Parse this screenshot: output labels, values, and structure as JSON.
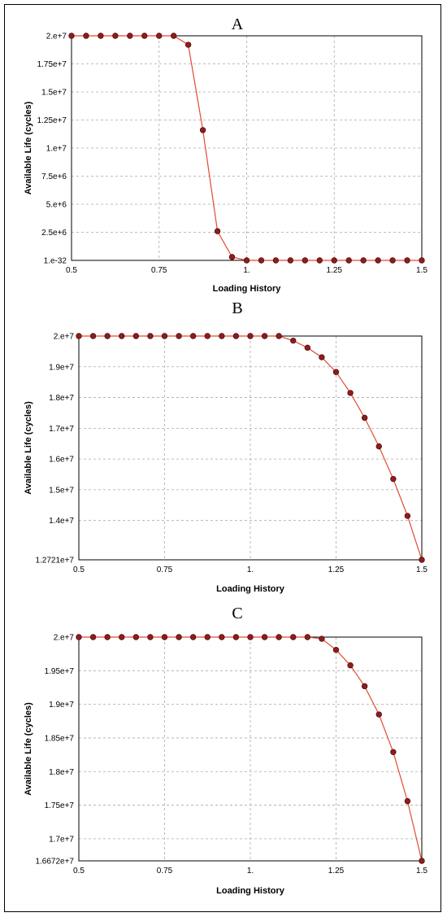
{
  "colors": {
    "line": "#e04b32",
    "point_fill": "#8b1e1e",
    "point_stroke": "#5a0c0c",
    "grid": "#aaaaaa",
    "frame": "#000000"
  },
  "chart_data": [
    {
      "type": "line",
      "title": "A",
      "xlabel": "Loading History",
      "ylabel": "Available Life (cycles)",
      "grid": true,
      "xlim": [
        0.5,
        1.5
      ],
      "ylim": [
        0,
        20000000
      ],
      "xticks": [
        0.5,
        0.75,
        1.0,
        1.25,
        1.5
      ],
      "xtick_labels": [
        "0.5",
        "0.75",
        "1.",
        "1.25",
        "1.5"
      ],
      "yticks": [
        0,
        2500000,
        5000000,
        7500000,
        10000000,
        12500000,
        15000000,
        17500000,
        20000000
      ],
      "ytick_labels": [
        "1.e-32",
        "2.5e+6",
        "5.e+6",
        "7.5e+6",
        "1.e+7",
        "1.25e+7",
        "1.5e+7",
        "1.75e+7",
        "2.e+7"
      ],
      "series": [
        {
          "x": [
            0.5,
            0.5417,
            0.5833,
            0.625,
            0.6667,
            0.7083,
            0.75,
            0.7917,
            0.8333,
            0.875,
            0.9167,
            0.9583,
            1.0,
            1.0417,
            1.0833,
            1.125,
            1.1667,
            1.2083,
            1.25,
            1.2917,
            1.3333,
            1.375,
            1.4167,
            1.4583,
            1.5
          ],
          "y": [
            20000000,
            20000000,
            20000000,
            20000000,
            20000000,
            20000000,
            20000000,
            20000000,
            19200000,
            11600000,
            2600000,
            300000,
            0,
            0,
            0,
            0,
            0,
            0,
            0,
            0,
            0,
            0,
            0,
            0,
            0
          ]
        }
      ]
    },
    {
      "type": "line",
      "title": "B",
      "xlabel": "Loading History",
      "ylabel": "Available Life (cycles)",
      "grid": true,
      "xlim": [
        0.5,
        1.5
      ],
      "ylim": [
        12721000,
        20000000
      ],
      "xticks": [
        0.5,
        0.75,
        1.0,
        1.25,
        1.5
      ],
      "xtick_labels": [
        "0.5",
        "0.75",
        "1.",
        "1.25",
        "1.5"
      ],
      "yticks": [
        12721000,
        14000000,
        15000000,
        16000000,
        17000000,
        18000000,
        19000000,
        20000000
      ],
      "ytick_labels": [
        "1.2721e+7",
        "1.4e+7",
        "1.5e+7",
        "1.6e+7",
        "1.7e+7",
        "1.8e+7",
        "1.9e+7",
        "2.e+7"
      ],
      "series": [
        {
          "x": [
            0.5,
            0.5417,
            0.5833,
            0.625,
            0.6667,
            0.7083,
            0.75,
            0.7917,
            0.8333,
            0.875,
            0.9167,
            0.9583,
            1.0,
            1.0417,
            1.0833,
            1.125,
            1.1667,
            1.2083,
            1.25,
            1.2917,
            1.3333,
            1.375,
            1.4167,
            1.4583,
            1.5
          ],
          "y": [
            20000000,
            20000000,
            20000000,
            20000000,
            20000000,
            20000000,
            20000000,
            20000000,
            20000000,
            20000000,
            20000000,
            20000000,
            20000000,
            20000000,
            20000000,
            19850000,
            19620000,
            19310000,
            18830000,
            18150000,
            17340000,
            16410000,
            15350000,
            14150000,
            12721000
          ]
        }
      ]
    },
    {
      "type": "line",
      "title": "C",
      "xlabel": "Loading History",
      "ylabel": "Available Life (cycles)",
      "grid": true,
      "xlim": [
        0.5,
        1.5
      ],
      "ylim": [
        16672000,
        20000000
      ],
      "xticks": [
        0.5,
        0.75,
        1.0,
        1.25,
        1.5
      ],
      "xtick_labels": [
        "0.5",
        "0.75",
        "1.",
        "1.25",
        "1.5"
      ],
      "yticks": [
        16672000,
        17000000,
        17500000,
        18000000,
        18500000,
        19000000,
        19500000,
        20000000
      ],
      "ytick_labels": [
        "1.6672e+7",
        "1.7e+7",
        "1.75e+7",
        "1.8e+7",
        "1.85e+7",
        "1.9e+7",
        "1.95e+7",
        "2.e+7"
      ],
      "series": [
        {
          "x": [
            0.5,
            0.5417,
            0.5833,
            0.625,
            0.6667,
            0.7083,
            0.75,
            0.7917,
            0.8333,
            0.875,
            0.9167,
            0.9583,
            1.0,
            1.0417,
            1.0833,
            1.125,
            1.1667,
            1.2083,
            1.25,
            1.2917,
            1.3333,
            1.375,
            1.4167,
            1.4583,
            1.5
          ],
          "y": [
            20000000,
            20000000,
            20000000,
            20000000,
            20000000,
            20000000,
            20000000,
            20000000,
            20000000,
            20000000,
            20000000,
            20000000,
            20000000,
            20000000,
            20000000,
            20000000,
            20000000,
            19975000,
            19810000,
            19580000,
            19270000,
            18850000,
            18290000,
            17560000,
            16672000
          ]
        }
      ]
    }
  ]
}
